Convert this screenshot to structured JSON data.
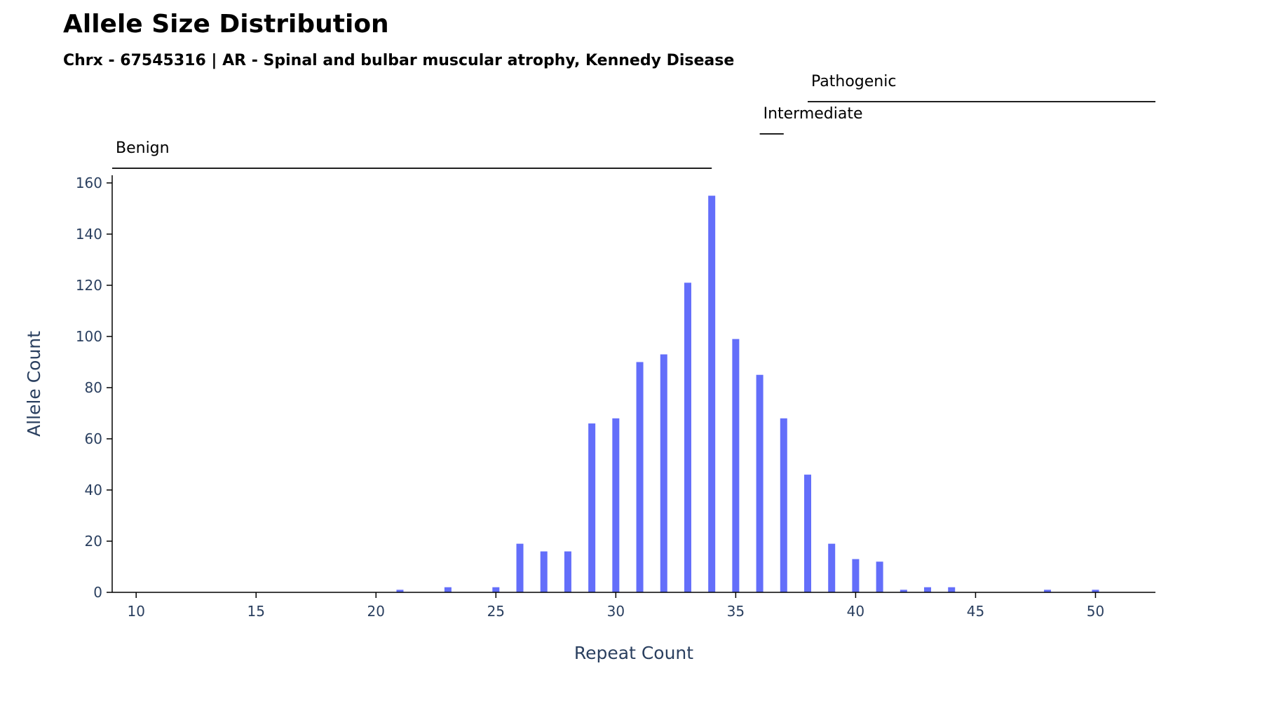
{
  "chart_data": {
    "type": "bar",
    "title": "Allele Size Distribution",
    "subtitle": "Chrx - 67545316 | AR - Spinal and bulbar muscular atrophy, Kennedy Disease",
    "xlabel": "Repeat Count",
    "ylabel": "Allele Count",
    "xlim": [
      9,
      52.5
    ],
    "ylim": [
      0,
      163
    ],
    "xticks": [
      10,
      15,
      20,
      25,
      30,
      35,
      40,
      45,
      50
    ],
    "yticks": [
      0,
      20,
      40,
      60,
      80,
      100,
      120,
      140,
      160
    ],
    "bar_color": "#636efa",
    "x": [
      21,
      23,
      25,
      26,
      27,
      28,
      29,
      30,
      31,
      32,
      33,
      34,
      35,
      36,
      37,
      38,
      39,
      40,
      41,
      42,
      43,
      44,
      48,
      50
    ],
    "values": [
      1,
      2,
      2,
      19,
      16,
      16,
      66,
      68,
      90,
      93,
      121,
      155,
      99,
      85,
      68,
      46,
      19,
      13,
      12,
      1,
      2,
      2,
      1,
      1
    ],
    "ranges": [
      {
        "label": "Benign",
        "start": 9,
        "end": 34
      },
      {
        "label": "Intermediate",
        "start": 36,
        "end": 37
      },
      {
        "label": "Pathogenic",
        "start": 38,
        "end": 52.5
      }
    ],
    "grid": false,
    "legend": "none"
  }
}
